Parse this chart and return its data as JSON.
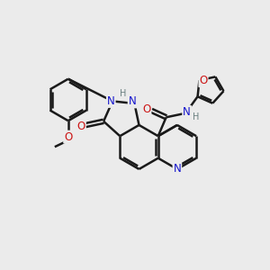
{
  "background_color": "#ebebeb",
  "bond_color": "#1a1a1a",
  "bond_width": 1.8,
  "atom_colors": {
    "C": "#1a1a1a",
    "N": "#1414cc",
    "O": "#cc1414",
    "H": "#6a8080"
  },
  "font_size_atom": 8.5,
  "font_size_H": 7.0
}
